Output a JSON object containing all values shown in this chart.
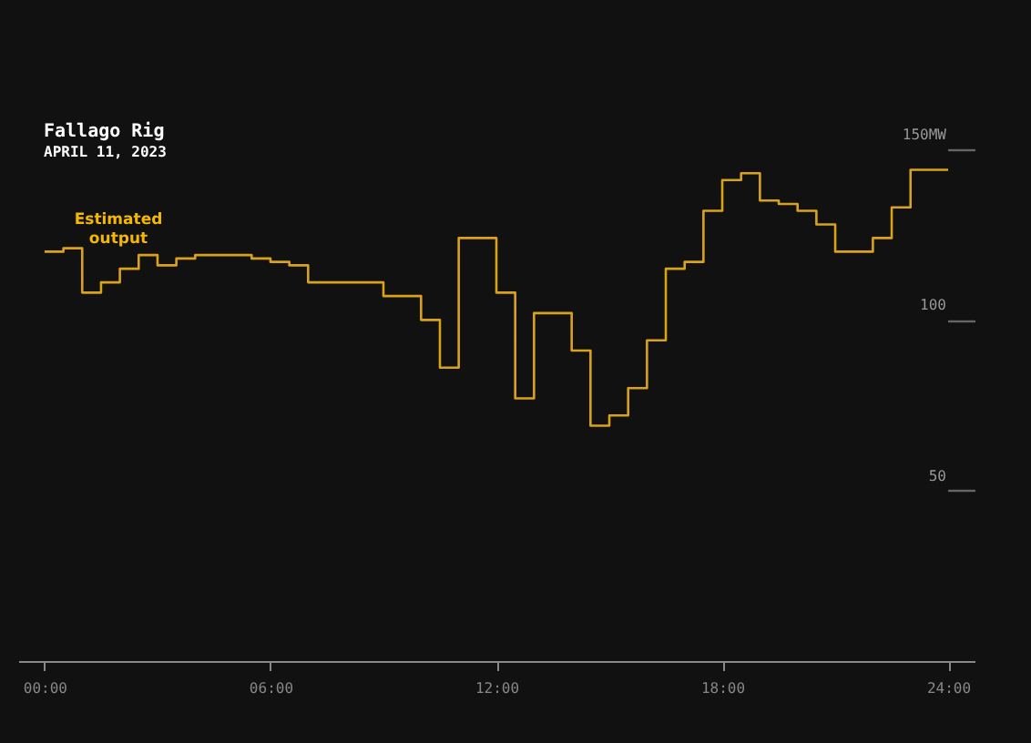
{
  "chart_data": {
    "type": "step",
    "title": "Fallago Rig",
    "subtitle": "APRIL 11, 2023",
    "annotations": [
      "Estimated output"
    ],
    "x": [
      0,
      0.5,
      1,
      1.5,
      2,
      2.5,
      3,
      3.5,
      4,
      5.5,
      6,
      6.5,
      7,
      9,
      10,
      10.5,
      11,
      12,
      12.5,
      13,
      14,
      14.5,
      15,
      15.5,
      16,
      16.5,
      17,
      17.5,
      18,
      18.5,
      19,
      19.5,
      20,
      20.5,
      21,
      22,
      22.5,
      23,
      24
    ],
    "series": [
      {
        "color": "#d9a21b",
        "values": [
          120,
          121,
          108,
          111,
          115,
          119,
          116,
          118,
          119,
          118,
          117,
          116,
          111,
          107,
          100,
          86,
          124,
          108,
          77,
          102,
          91,
          69,
          72,
          80,
          94,
          115,
          117,
          132,
          141,
          143,
          135,
          134,
          132,
          128,
          120,
          124,
          133,
          144,
          144
        ]
      }
    ],
    "xlim": [
      -0.7,
      24.7
    ],
    "ylim": [
      0,
      150
    ],
    "xticks": [
      {
        "value": 0,
        "label": "00:00"
      },
      {
        "value": 6,
        "label": "06:00"
      },
      {
        "value": 12,
        "label": "12:00"
      },
      {
        "value": 18,
        "label": "18:00"
      },
      {
        "value": 24,
        "label": "24:00"
      }
    ],
    "yticks": [
      {
        "value": 50,
        "label": "50"
      },
      {
        "value": 100,
        "label": "100"
      },
      {
        "value": 150,
        "label": "150MW"
      }
    ],
    "grid": false,
    "line_style": "solid"
  }
}
